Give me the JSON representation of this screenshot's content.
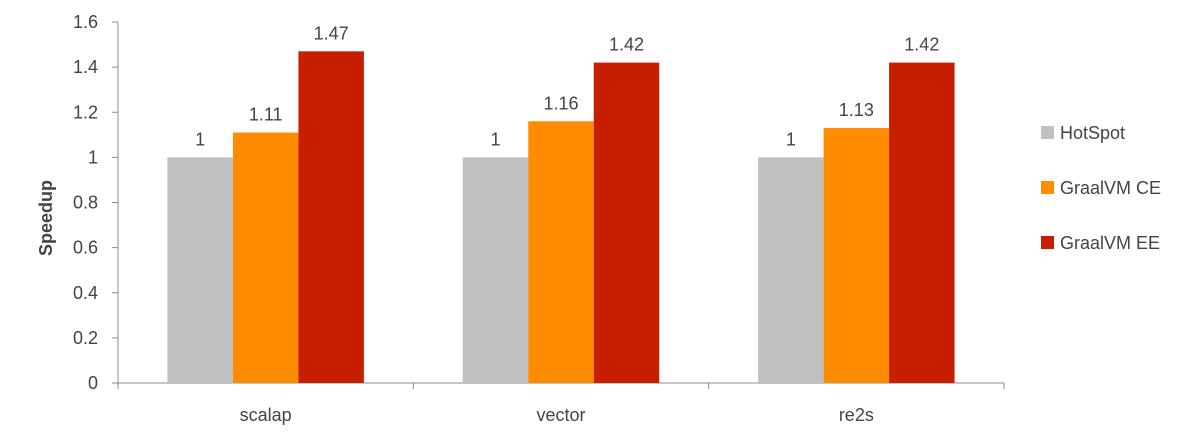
{
  "chart_data": {
    "type": "bar",
    "title": "",
    "xlabel": "",
    "ylabel": "Speedup",
    "ylim": [
      0,
      1.6
    ],
    "yticks": [
      "0",
      "0.2",
      "0.4",
      "0.6",
      "0.8",
      "1",
      "1.2",
      "1.4",
      "1.6"
    ],
    "grid": false,
    "legend_position": "right",
    "categories": [
      "scalap",
      "vector",
      "re2s"
    ],
    "series": [
      {
        "name": "HotSpot",
        "color": "#c0c0c0",
        "values": [
          1,
          1,
          1
        ],
        "labels": [
          "1",
          "1",
          "1"
        ]
      },
      {
        "name": "GraalVM CE",
        "color": "#ff8c00",
        "values": [
          1.11,
          1.16,
          1.13
        ],
        "labels": [
          "1.11",
          "1.16",
          "1.13"
        ]
      },
      {
        "name": "GraalVM EE",
        "color": "#c81e00",
        "values": [
          1.47,
          1.42,
          1.42
        ],
        "labels": [
          "1.47",
          "1.42",
          "1.42"
        ]
      }
    ]
  }
}
